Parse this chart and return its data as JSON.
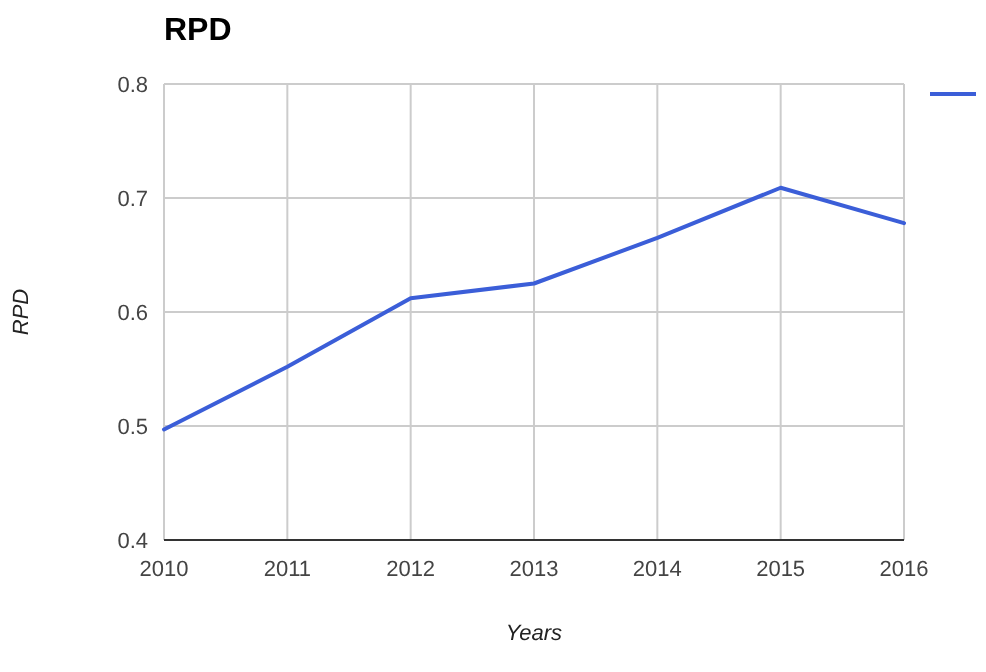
{
  "chart_data": {
    "type": "line",
    "title": "RPD",
    "xlabel": "Years",
    "ylabel": "RPD",
    "x": [
      2010,
      2011,
      2012,
      2013,
      2014,
      2015,
      2016
    ],
    "series": [
      {
        "color": "#3b5ed8",
        "values": [
          0.497,
          0.552,
          0.612,
          0.625,
          0.665,
          0.709,
          0.678
        ]
      }
    ],
    "xlim": [
      2010,
      2016
    ],
    "xticks": [
      2010,
      2011,
      2012,
      2013,
      2014,
      2015,
      2016
    ],
    "ylim": [
      0.4,
      0.8
    ],
    "yticks": [
      {
        "value": 0.4,
        "label": "0.4"
      },
      {
        "value": 0.5,
        "label": "0.5"
      },
      {
        "value": 0.6,
        "label": "0.6"
      },
      {
        "value": 0.7,
        "label": "0.7"
      },
      {
        "value": 0.8,
        "label": "0.8"
      }
    ],
    "grid": true,
    "marker": "none",
    "line_style": "solid"
  }
}
